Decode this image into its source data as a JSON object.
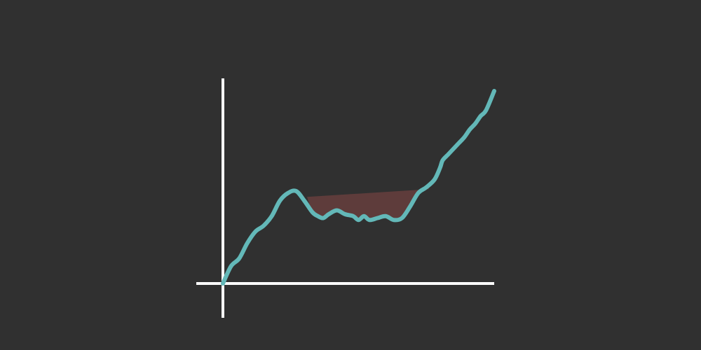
{
  "colors": {
    "background": "#303030",
    "axis": "#ffffff",
    "line": "#63b8b8",
    "shaded_region": "#5e3c3b"
  },
  "chart_data": {
    "type": "line",
    "title": "",
    "xlabel": "",
    "ylabel": "",
    "xlim": [
      0,
      100
    ],
    "ylim": [
      0,
      100
    ],
    "grid": false,
    "legend": "none",
    "axis_ticks": false,
    "series": [
      {
        "x": [
          0,
          3,
          6,
          9,
          12,
          15,
          18,
          21,
          24,
          27,
          30,
          33,
          35,
          37,
          39,
          42,
          45,
          48,
          50,
          52,
          54,
          57,
          60,
          63,
          66,
          69,
          72,
          75,
          78,
          80,
          81,
          83,
          85,
          87,
          89,
          91,
          93,
          95,
          97,
          100
        ],
        "y": [
          0,
          9,
          13,
          21,
          27,
          30,
          35,
          43,
          47,
          48,
          43,
          37,
          35,
          34,
          36,
          38,
          36,
          35,
          33,
          35,
          33,
          34,
          35,
          33,
          34,
          40,
          47,
          50,
          54,
          60,
          64,
          67,
          70,
          73,
          76,
          80,
          83,
          87,
          90,
          100
        ]
      }
    ],
    "shaded_region": {
      "x_start": 31,
      "x_end": 76,
      "upper_y_start": 45,
      "upper_y_end": 49
    }
  }
}
